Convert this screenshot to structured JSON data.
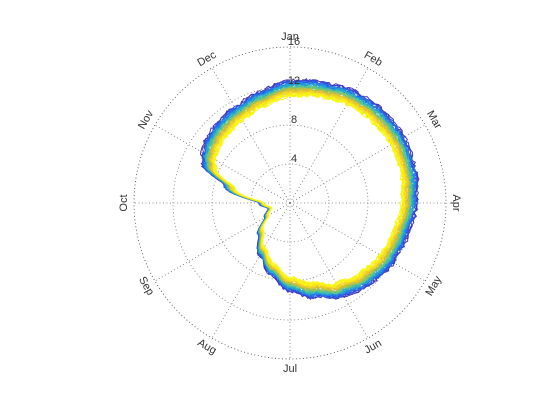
{
  "chart_data": {
    "type": "line",
    "subtype": "polar",
    "title": "",
    "theta_axis": {
      "labels": [
        "Jan",
        "Feb",
        "Mar",
        "Apr",
        "May",
        "Jun",
        "Jul",
        "Aug",
        "Sep",
        "Oct",
        "Nov",
        "Dec"
      ],
      "direction": "clockwise",
      "zero_location": "top",
      "label_orientation": "tangential"
    },
    "r_axis": {
      "ticks": [
        4,
        8,
        12,
        16
      ],
      "tick_labels": [
        "4",
        "8",
        "12",
        "16"
      ],
      "range": [
        0,
        16
      ]
    },
    "grid": true,
    "grid_style": "dotted",
    "colormap": [
      "#3e26a8",
      "#2f56ea",
      "#1b89e7",
      "#2ab4c2",
      "#63c883",
      "#b8bf3d",
      "#f0c02f",
      "#f4e01f",
      "#f9fb0e"
    ],
    "series_count": 40,
    "typical_curve": {
      "month_fraction": [
        0.0,
        0.5,
        1.0,
        1.5,
        2.0,
        2.5,
        3.0,
        3.5,
        4.0,
        4.5,
        5.0,
        5.5,
        6.0,
        6.5,
        7.0,
        7.5,
        8.0,
        8.5,
        9.0,
        9.5,
        9.8,
        10.0,
        10.3,
        10.5,
        11.0,
        11.5,
        12.0
      ],
      "r": [
        12.5,
        12.8,
        13.2,
        13.4,
        13.5,
        13.3,
        13.0,
        12.5,
        12.2,
        11.7,
        11.0,
        10.0,
        9.0,
        7.6,
        6.2,
        4.6,
        3.0,
        2.3,
        3.2,
        7.0,
        9.8,
        10.4,
        10.8,
        11.0,
        11.3,
        11.8,
        12.5
      ]
    },
    "spread": {
      "r_min_offset": -1.5,
      "r_max_offset": 0.0
    }
  }
}
